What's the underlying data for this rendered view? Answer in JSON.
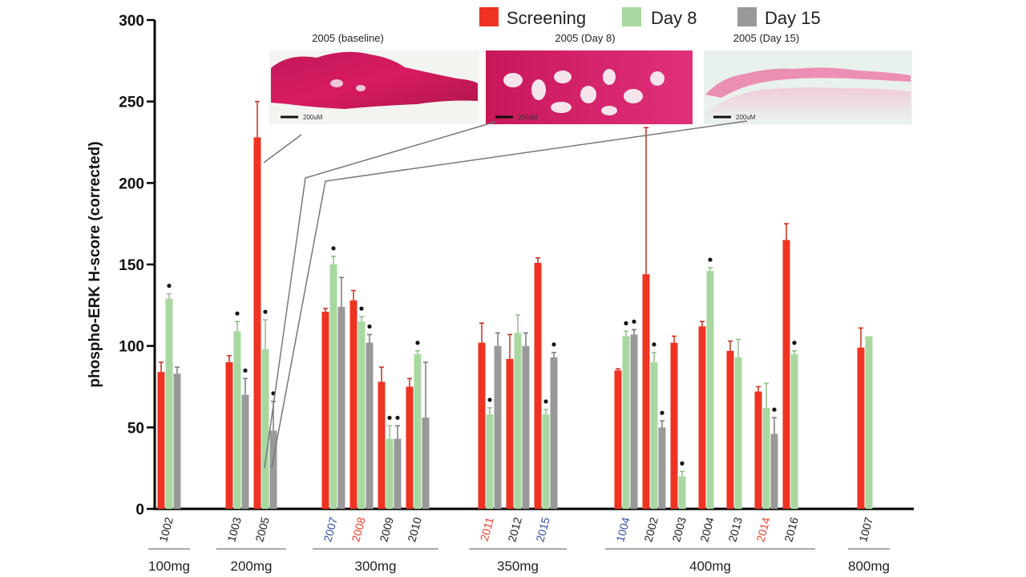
{
  "chart_data": {
    "type": "bar",
    "ylabel": "phospho-ERK H-score (corrected)",
    "ylim": [
      0,
      300
    ],
    "yticks": [
      "0",
      "50",
      "100",
      "150",
      "200",
      "250",
      "300"
    ],
    "legend": [
      {
        "name": "Screening",
        "color": "#ee3322"
      },
      {
        "name": "Day 8",
        "color": "#a8d8a0"
      },
      {
        "name": "Day 15",
        "color": "#999999"
      }
    ],
    "groups": [
      {
        "dose": "100mg",
        "patients": [
          {
            "id": "1002",
            "color": "#222222",
            "values": [
              84,
              129,
              83
            ],
            "errors": [
              6,
              3,
              4
            ],
            "marked": [
              false,
              true,
              false
            ]
          }
        ]
      },
      {
        "dose": "200mg",
        "patients": [
          {
            "id": "1003",
            "color": "#222222",
            "values": [
              90,
              109,
              70
            ],
            "errors": [
              4,
              6,
              10
            ],
            "marked": [
              false,
              true,
              true
            ]
          },
          {
            "id": "2005",
            "color": "#222222",
            "values": [
              228,
              98,
              48
            ],
            "errors": [
              22,
              18,
              18
            ],
            "marked": [
              false,
              true,
              true
            ]
          }
        ]
      },
      {
        "dose": "300mg",
        "patients": [
          {
            "id": "2007",
            "color": "#3a4fa8",
            "values": [
              121,
              150,
              124
            ],
            "errors": [
              2,
              5,
              18
            ],
            "marked": [
              false,
              true,
              false
            ]
          },
          {
            "id": "2008",
            "color": "#e8432e",
            "values": [
              128,
              115,
              102
            ],
            "errors": [
              6,
              3,
              5
            ],
            "marked": [
              false,
              true,
              true
            ]
          },
          {
            "id": "2009",
            "color": "#222222",
            "values": [
              78,
              43,
              43
            ],
            "errors": [
              9,
              8,
              8
            ],
            "marked": [
              false,
              true,
              true
            ]
          },
          {
            "id": "2010",
            "color": "#222222",
            "values": [
              75,
              95,
              56
            ],
            "errors": [
              5,
              2,
              34
            ],
            "marked": [
              false,
              true,
              false
            ]
          }
        ]
      },
      {
        "dose": "350mg",
        "patients": [
          {
            "id": "2011",
            "color": "#e8432e",
            "values": [
              102,
              58,
              100
            ],
            "errors": [
              12,
              4,
              8
            ],
            "marked": [
              false,
              true,
              false
            ]
          },
          {
            "id": "2012",
            "color": "#222222",
            "values": [
              92,
              108,
              100
            ],
            "errors": [
              15,
              11,
              8
            ],
            "marked": [
              false,
              false,
              false
            ]
          },
          {
            "id": "2015",
            "color": "#3a4fa8",
            "values": [
              151,
              58,
              93
            ],
            "errors": [
              3,
              3,
              3
            ],
            "marked": [
              false,
              true,
              true
            ]
          }
        ]
      },
      {
        "dose": "400mg",
        "patients": [
          {
            "id": "1004",
            "color": "#3a4fa8",
            "values": [
              85,
              106,
              107
            ],
            "errors": [
              1,
              3,
              3
            ],
            "marked": [
              false,
              true,
              true
            ]
          },
          {
            "id": "2002",
            "color": "#222222",
            "values": [
              144,
              90,
              50
            ],
            "errors": [
              90,
              6,
              4
            ],
            "marked": [
              false,
              true,
              true
            ]
          },
          {
            "id": "2003",
            "color": "#222222",
            "values": [
              102,
              20,
              null
            ],
            "errors": [
              4,
              3,
              0
            ],
            "marked": [
              false,
              true,
              false
            ]
          },
          {
            "id": "2004",
            "color": "#222222",
            "values": [
              112,
              146,
              null
            ],
            "errors": [
              3,
              2,
              0
            ],
            "marked": [
              false,
              true,
              false
            ]
          },
          {
            "id": "2013",
            "color": "#222222",
            "values": [
              97,
              93,
              null
            ],
            "errors": [
              6,
              11,
              0
            ],
            "marked": [
              false,
              false,
              false
            ]
          },
          {
            "id": "2014",
            "color": "#e8432e",
            "values": [
              72,
              62,
              46
            ],
            "errors": [
              3,
              15,
              10
            ],
            "marked": [
              false,
              false,
              true
            ]
          },
          {
            "id": "2016",
            "color": "#222222",
            "values": [
              165,
              95,
              null
            ],
            "errors": [
              10,
              2,
              0
            ],
            "marked": [
              false,
              true,
              false
            ]
          }
        ]
      },
      {
        "dose": "800mg",
        "patients": [
          {
            "id": "1007",
            "color": "#222222",
            "values": [
              99,
              106,
              null
            ],
            "errors": [
              12,
              0,
              0
            ],
            "marked": [
              false,
              false,
              false
            ]
          }
        ]
      }
    ],
    "insets": [
      {
        "title": "2005 (baseline)",
        "scale": "200uM"
      },
      {
        "title": "2005 (Day 8)",
        "scale": "200uM"
      },
      {
        "title": "2005 (Day 15)",
        "scale": "200uM"
      }
    ]
  }
}
